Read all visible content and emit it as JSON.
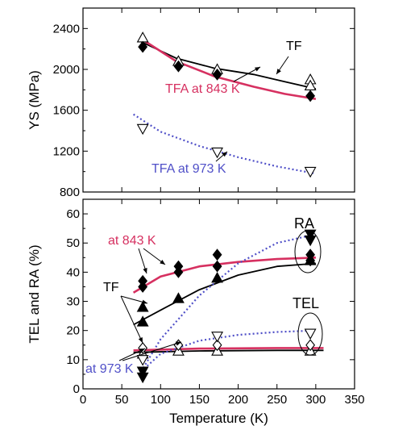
{
  "chart_data": [
    {
      "type": "scatter",
      "ylabel": "YS (MPa)",
      "yticks": [
        "800",
        "1200",
        "1600",
        "2000",
        "2400"
      ],
      "ylim": [
        800,
        2600
      ],
      "xlim": [
        0,
        350
      ],
      "grid": false,
      "colors": {
        "TF": "#000000",
        "TFA at 843 K": "#d63060",
        "TFA at 973 K": "#5050c8"
      },
      "annotations": [
        {
          "text": "TF",
          "color": "#000000"
        },
        {
          "text": "TFA at 843 K",
          "color": "#d63060"
        },
        {
          "text": "TFA at 973 K",
          "color": "#5050c8"
        }
      ],
      "series": [
        {
          "name": "TF",
          "marker": "triangle-up-open",
          "points": [
            [
              77,
              2310
            ],
            [
              123,
              2080
            ],
            [
              173,
              2000
            ],
            [
              293,
              1900
            ],
            [
              293,
              1840
            ]
          ],
          "curve": [
            [
              75,
              2270
            ],
            [
              120,
              2110
            ],
            [
              170,
              2010
            ],
            [
              220,
              1950
            ],
            [
              260,
              1880
            ],
            [
              300,
              1810
            ]
          ]
        },
        {
          "name": "TFA at 843 K",
          "marker": "diamond-filled",
          "points": [
            [
              77,
              2220
            ],
            [
              123,
              2030
            ],
            [
              173,
              1950
            ],
            [
              293,
              1740
            ]
          ],
          "curve": [
            [
              75,
              2300
            ],
            [
              120,
              2080
            ],
            [
              170,
              1930
            ],
            [
              220,
              1830
            ],
            [
              260,
              1760
            ],
            [
              300,
              1710
            ]
          ]
        },
        {
          "name": "TFA at 973 K",
          "marker": "triangle-down-open",
          "points": [
            [
              77,
              1420
            ],
            [
              173,
              1190
            ],
            [
              293,
              1000
            ]
          ],
          "curve": [
            [
              65,
              1560
            ],
            [
              100,
              1390
            ],
            [
              150,
              1250
            ],
            [
              200,
              1140
            ],
            [
              250,
              1050
            ],
            [
              300,
              980
            ]
          ]
        }
      ]
    },
    {
      "type": "scatter",
      "xlabel": "Temperature (K)",
      "ylabel": "TEL and RA (%)",
      "xticks": [
        "0",
        "50",
        "100",
        "150",
        "200",
        "250",
        "300",
        "350"
      ],
      "yticks": [
        "0",
        "10",
        "20",
        "30",
        "40",
        "50",
        "60"
      ],
      "xlim": [
        0,
        350
      ],
      "ylim": [
        0,
        65
      ],
      "grid": false,
      "annotations": [
        {
          "text": "at 843 K",
          "color": "#d63060"
        },
        {
          "text": "TF",
          "color": "#000000"
        },
        {
          "text": "at 973 K",
          "color": "#5050c8"
        },
        {
          "text": "RA",
          "color": "#000000"
        },
        {
          "text": "TEL",
          "color": "#000000"
        }
      ],
      "series": [
        {
          "name": "TF RA",
          "marker": "triangle-up-filled",
          "points": [
            [
              77,
              28
            ],
            [
              77,
              23
            ],
            [
              123,
              31
            ],
            [
              173,
              38
            ],
            [
              293,
              44
            ]
          ],
          "curve": [
            [
              65,
              22
            ],
            [
              100,
              27
            ],
            [
              150,
              34
            ],
            [
              200,
              39
            ],
            [
              250,
              42
            ],
            [
              300,
              43
            ]
          ]
        },
        {
          "name": "TFA at 843 K RA",
          "marker": "diamond-filled",
          "points": [
            [
              77,
              37
            ],
            [
              77,
              35
            ],
            [
              123,
              42
            ],
            [
              123,
              40
            ],
            [
              173,
              46
            ],
            [
              173,
              42
            ],
            [
              293,
              46
            ],
            [
              293,
              44
            ]
          ],
          "curve": [
            [
              65,
              33
            ],
            [
              100,
              38.5
            ],
            [
              150,
              42
            ],
            [
              200,
              43.5
            ],
            [
              250,
              44.5
            ],
            [
              300,
              45
            ]
          ]
        },
        {
          "name": "TFA at 973 K RA",
          "marker": "triangle-down-filled",
          "points": [
            [
              77,
              6
            ],
            [
              77,
              4
            ],
            [
              293,
              53
            ],
            [
              293,
              51
            ]
          ],
          "curve": [
            [
              75,
              6
            ],
            [
              100,
              17
            ],
            [
              150,
              32
            ],
            [
              200,
              43
            ],
            [
              250,
              50
            ],
            [
              300,
              53
            ]
          ]
        },
        {
          "name": "TF TEL",
          "marker": "triangle-up-open",
          "points": [
            [
              77,
              12
            ],
            [
              123,
              13
            ],
            [
              173,
              13
            ],
            [
              293,
              13
            ]
          ],
          "curve": [
            [
              65,
              12.5
            ],
            [
              150,
              13
            ],
            [
              250,
              13.2
            ],
            [
              310,
              13.2
            ]
          ]
        },
        {
          "name": "TFA at 843 K TEL",
          "marker": "diamond-open",
          "points": [
            [
              77,
              14
            ],
            [
              123,
              15
            ],
            [
              173,
              15
            ],
            [
              293,
              15
            ]
          ],
          "curve": [
            [
              65,
              13.2
            ],
            [
              150,
              13.8
            ],
            [
              250,
              14
            ],
            [
              310,
              14
            ]
          ]
        },
        {
          "name": "TFA at 973 K TEL",
          "marker": "triangle-down-open",
          "points": [
            [
              77,
              10
            ],
            [
              173,
              18
            ],
            [
              293,
              19
            ]
          ],
          "curve": [
            [
              75,
              6
            ],
            [
              100,
              12
            ],
            [
              150,
              16.5
            ],
            [
              200,
              18.5
            ],
            [
              250,
              19.5
            ],
            [
              300,
              20
            ]
          ]
        }
      ]
    }
  ]
}
